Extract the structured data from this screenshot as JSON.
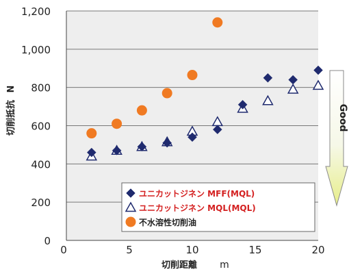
{
  "chart_data": {
    "type": "scatter",
    "xlabel": "切削距離",
    "xunit": "m",
    "ylabel": "切削抵抗",
    "yunit": "N",
    "xlim": [
      0,
      20
    ],
    "ylim": [
      0,
      1200
    ],
    "x_ticks": [
      0,
      5,
      10,
      15,
      20
    ],
    "x_tick_labels": [
      "0",
      "5",
      "10",
      "15",
      "20"
    ],
    "y_ticks": [
      0,
      200,
      400,
      600,
      800,
      1000,
      1200
    ],
    "y_tick_labels": [
      "0",
      "200",
      "400",
      "600",
      "800",
      "1,000",
      "1,200"
    ],
    "grid": "horizontal",
    "plot_background": "#eeeeee",
    "legend_position": "bottom-right",
    "legend_text_color": "#d42020",
    "arrow_label": "Good",
    "series": [
      {
        "name": "ユニカットジネン  MFF(MQL)",
        "marker": "diamond",
        "color": "#1f2a6e",
        "label_color": "#d42020",
        "x": [
          2,
          4,
          6,
          8,
          10,
          12,
          14,
          16,
          18,
          20
        ],
        "y": [
          460,
          470,
          490,
          510,
          540,
          580,
          710,
          850,
          840,
          890
        ]
      },
      {
        "name": "ユニカットジネン  MQL(MQL)",
        "marker": "triangle-open",
        "color": "#1f2a6e",
        "label_color": "#d42020",
        "x": [
          2,
          4,
          6,
          8,
          10,
          12,
          14,
          16,
          18,
          20
        ],
        "y": [
          440,
          470,
          490,
          515,
          570,
          620,
          690,
          730,
          790,
          810
        ]
      },
      {
        "name": "不水溶性切削油",
        "marker": "circle",
        "color": "#f07a22",
        "label_color": "#222222",
        "x": [
          2,
          4,
          6,
          8,
          10,
          12
        ],
        "y": [
          560,
          610,
          680,
          770,
          865,
          1140
        ]
      }
    ]
  }
}
